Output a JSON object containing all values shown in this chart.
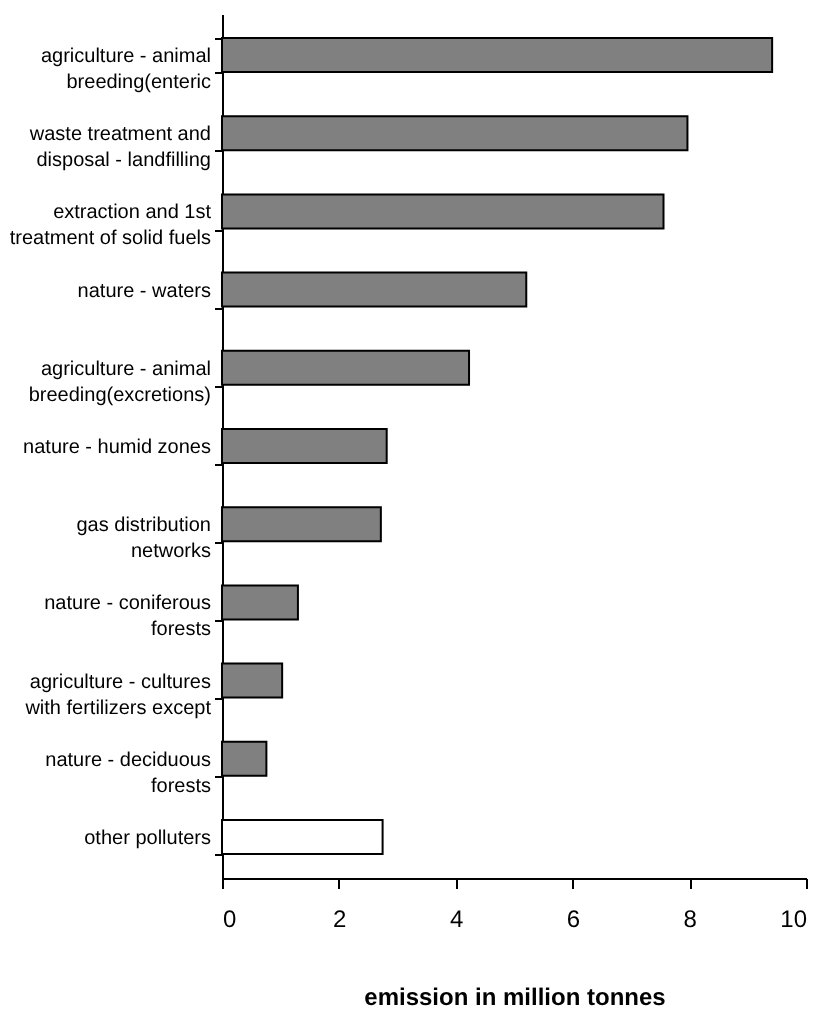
{
  "chart_data": {
    "type": "bar",
    "orientation": "horizontal",
    "xlabel": "emission in million tonnes",
    "categories": [
      "agriculture - animal\nbreeding(enteric",
      "waste treatment and\ndisposal - landfilling",
      "extraction and 1st\ntreatment of solid fuels",
      "nature - waters",
      "agriculture - animal\nbreeding(excretions)",
      "nature - humid zones",
      "gas distribution\nnetworks",
      "nature - coniferous\nforests",
      "agriculture - cultures\nwith fertilizers except",
      "nature - deciduous\nforests",
      "other polluters"
    ],
    "values": [
      9.42,
      7.97,
      7.56,
      5.21,
      4.23,
      2.82,
      2.72,
      1.3,
      1.03,
      0.76,
      2.75
    ],
    "colors": [
      "#808080",
      "#808080",
      "#808080",
      "#808080",
      "#808080",
      "#808080",
      "#808080",
      "#808080",
      "#808080",
      "#808080",
      "#ffffff"
    ],
    "xlim": [
      0,
      10
    ],
    "xticks": [
      0,
      2,
      4,
      6,
      8,
      10
    ],
    "grid": false
  }
}
